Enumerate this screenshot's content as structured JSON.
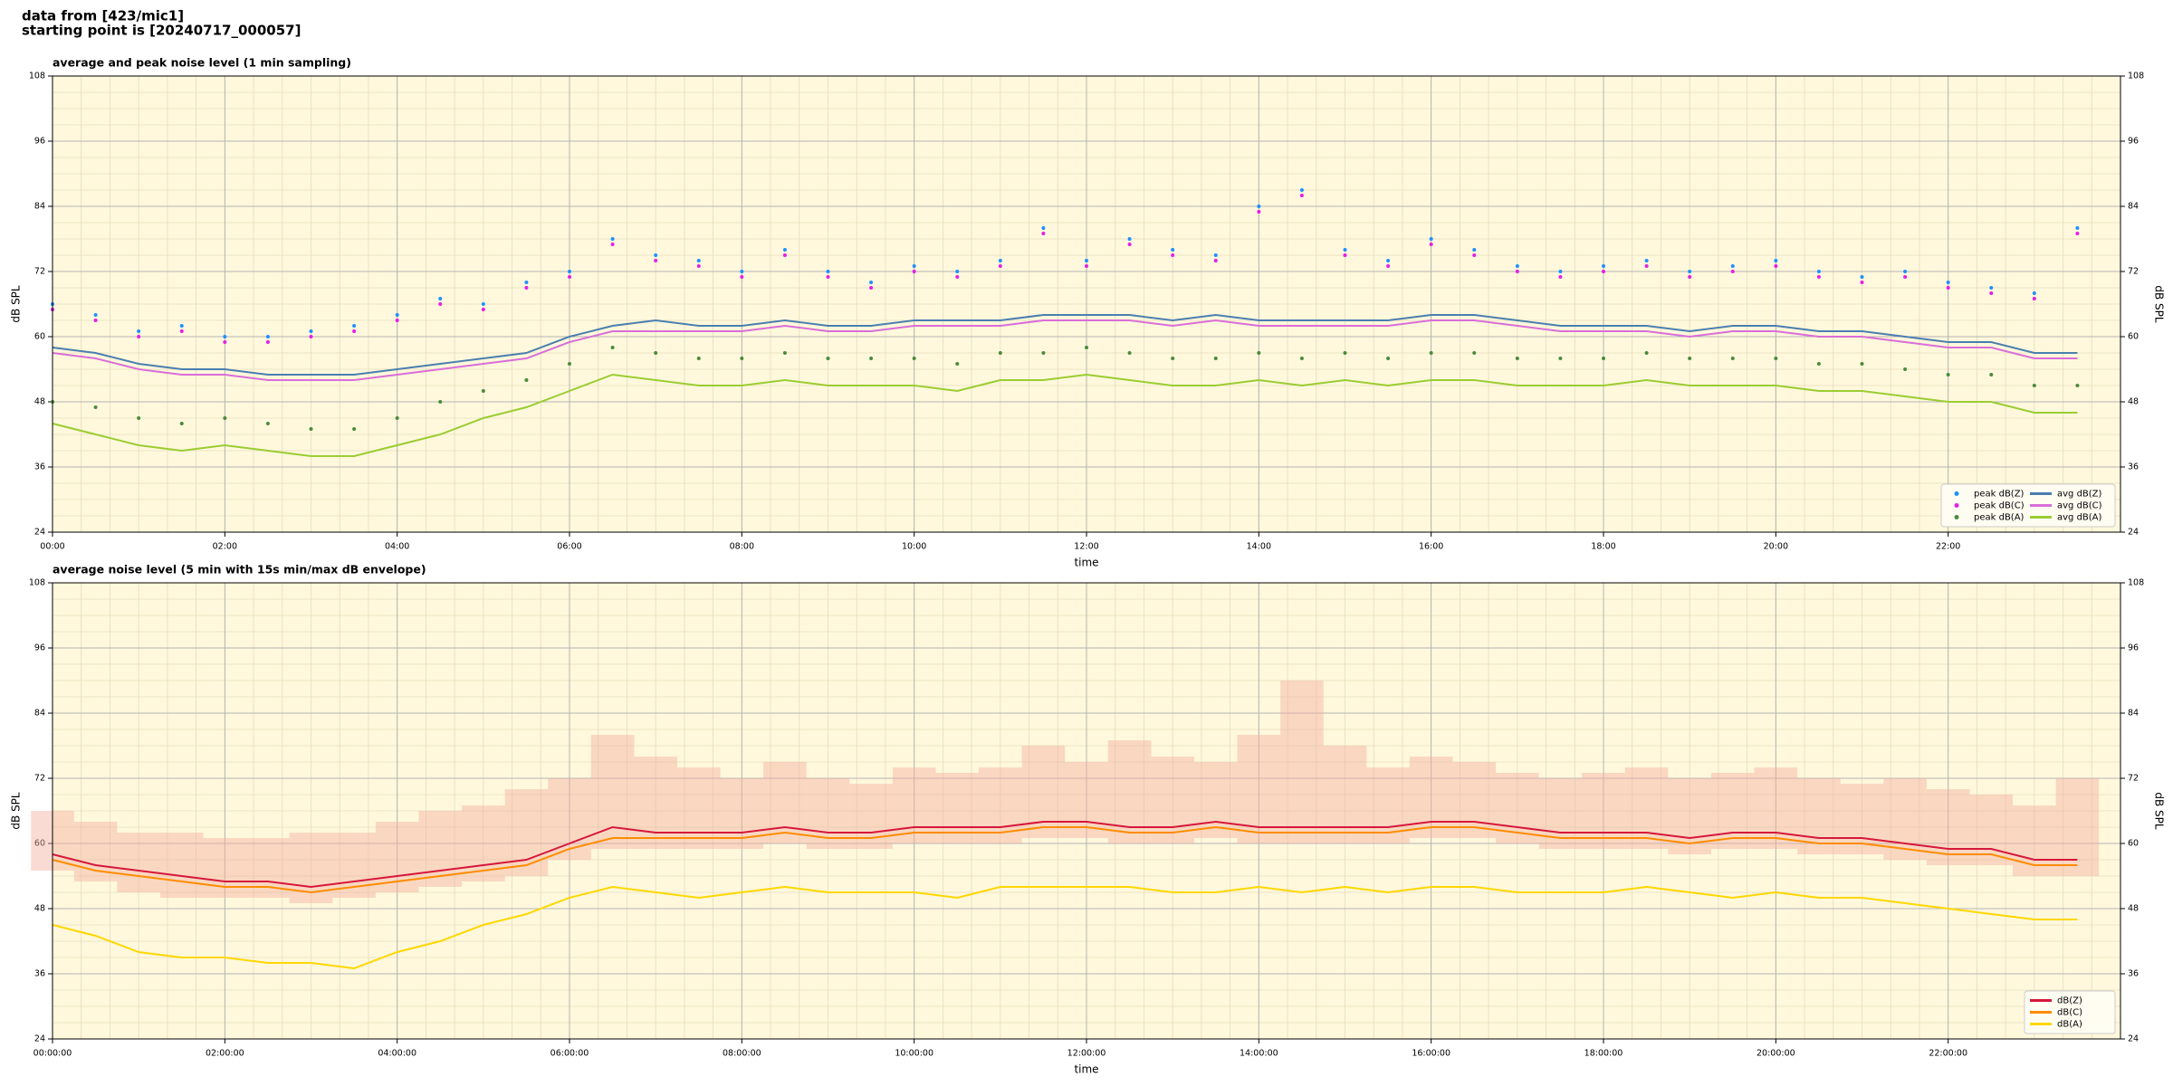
{
  "header": {
    "lines": [
      "data from [423/mic1]",
      "starting point is [20240717_000057]"
    ]
  },
  "chart_data": [
    {
      "type": "line",
      "title": "average and peak noise level (1 min sampling)",
      "xlabel": "time",
      "ylabel": "dB SPL",
      "xlim": [
        "00:00",
        "24:00"
      ],
      "ylim": [
        24,
        108
      ],
      "xticks": [
        "00:00",
        "02:00",
        "04:00",
        "06:00",
        "08:00",
        "10:00",
        "12:00",
        "14:00",
        "16:00",
        "18:00",
        "20:00",
        "22:00"
      ],
      "yticks": [
        24,
        36,
        48,
        60,
        72,
        84,
        96,
        108
      ],
      "grid": true,
      "minor_grid": true,
      "background": "#fff8dc",
      "legend": "lower right",
      "legend_columns": 2,
      "x": [
        "00:00",
        "00:30",
        "01:00",
        "01:30",
        "02:00",
        "02:30",
        "03:00",
        "03:30",
        "04:00",
        "04:30",
        "05:00",
        "05:30",
        "06:00",
        "06:30",
        "07:00",
        "07:30",
        "08:00",
        "08:30",
        "09:00",
        "09:30",
        "10:00",
        "10:30",
        "11:00",
        "11:30",
        "12:00",
        "12:30",
        "13:00",
        "13:30",
        "14:00",
        "14:30",
        "15:00",
        "15:30",
        "16:00",
        "16:30",
        "17:00",
        "17:30",
        "18:00",
        "18:30",
        "19:00",
        "19:30",
        "20:00",
        "20:30",
        "21:00",
        "21:30",
        "22:00",
        "22:30",
        "23:00",
        "23:30"
      ],
      "series": [
        {
          "name": "peak dB(Z)",
          "type": "scatter",
          "color": "#1e90ff",
          "values": [
            66,
            64,
            61,
            62,
            60,
            60,
            61,
            62,
            64,
            67,
            66,
            70,
            72,
            78,
            75,
            74,
            72,
            76,
            72,
            70,
            73,
            72,
            74,
            80,
            74,
            78,
            76,
            75,
            84,
            87,
            76,
            74,
            78,
            76,
            73,
            72,
            73,
            74,
            72,
            73,
            74,
            72,
            71,
            72,
            70,
            69,
            68,
            80
          ]
        },
        {
          "name": "peak dB(C)",
          "type": "scatter",
          "color": "#e61ee6",
          "values": [
            65,
            63,
            60,
            61,
            59,
            59,
            60,
            61,
            63,
            66,
            65,
            69,
            71,
            77,
            74,
            73,
            71,
            75,
            71,
            69,
            72,
            71,
            73,
            79,
            73,
            77,
            75,
            74,
            83,
            86,
            75,
            73,
            77,
            75,
            72,
            71,
            72,
            73,
            71,
            72,
            73,
            71,
            70,
            71,
            69,
            68,
            67,
            79
          ]
        },
        {
          "name": "peak dB(A)",
          "type": "scatter",
          "color": "#4b8b3b",
          "values": [
            48,
            47,
            45,
            44,
            45,
            44,
            43,
            43,
            45,
            48,
            50,
            52,
            55,
            58,
            57,
            56,
            56,
            57,
            56,
            56,
            56,
            55,
            57,
            57,
            58,
            57,
            56,
            56,
            57,
            56,
            57,
            56,
            57,
            57,
            56,
            56,
            56,
            57,
            56,
            56,
            56,
            55,
            55,
            54,
            53,
            53,
            51,
            51
          ]
        },
        {
          "name": "avg dB(Z)",
          "type": "line",
          "color": "#4a7fb0",
          "values": [
            58,
            57,
            55,
            54,
            54,
            53,
            53,
            53,
            54,
            55,
            56,
            57,
            60,
            62,
            63,
            62,
            62,
            63,
            62,
            62,
            63,
            63,
            63,
            64,
            64,
            64,
            63,
            64,
            63,
            63,
            63,
            63,
            64,
            64,
            63,
            62,
            62,
            62,
            61,
            62,
            62,
            61,
            61,
            60,
            59,
            59,
            57,
            57
          ]
        },
        {
          "name": "avg dB(C)",
          "type": "line",
          "color": "#d96ed9",
          "values": [
            57,
            56,
            54,
            53,
            53,
            52,
            52,
            52,
            53,
            54,
            55,
            56,
            59,
            61,
            61,
            61,
            61,
            62,
            61,
            61,
            62,
            62,
            62,
            63,
            63,
            63,
            62,
            63,
            62,
            62,
            62,
            62,
            63,
            63,
            62,
            61,
            61,
            61,
            60,
            61,
            61,
            60,
            60,
            59,
            58,
            58,
            56,
            56
          ]
        },
        {
          "name": "avg dB(A)",
          "type": "line",
          "color": "#9acd32",
          "values": [
            44,
            42,
            40,
            39,
            40,
            39,
            38,
            38,
            40,
            42,
            45,
            47,
            50,
            53,
            52,
            51,
            51,
            52,
            51,
            51,
            51,
            50,
            52,
            52,
            53,
            52,
            51,
            51,
            52,
            51,
            52,
            51,
            52,
            52,
            51,
            51,
            51,
            52,
            51,
            51,
            51,
            50,
            50,
            49,
            48,
            48,
            46,
            46
          ]
        }
      ]
    },
    {
      "type": "line",
      "title": "average noise level (5 min with 15s min/max dB envelope)",
      "xlabel": "time",
      "ylabel": "dB SPL",
      "xlim": [
        "00:00:00",
        "24:00:00"
      ],
      "ylim": [
        24,
        108
      ],
      "xticks": [
        "00:00:00",
        "02:00:00",
        "04:00:00",
        "06:00:00",
        "08:00:00",
        "10:00:00",
        "12:00:00",
        "14:00:00",
        "16:00:00",
        "18:00:00",
        "20:00:00",
        "22:00:00"
      ],
      "yticks": [
        24,
        36,
        48,
        60,
        72,
        84,
        96,
        108
      ],
      "grid": true,
      "minor_grid": true,
      "background": "#fff8dc",
      "legend": "lower right",
      "legend_columns": 1,
      "x": [
        "00:00",
        "00:30",
        "01:00",
        "01:30",
        "02:00",
        "02:30",
        "03:00",
        "03:30",
        "04:00",
        "04:30",
        "05:00",
        "05:30",
        "06:00",
        "06:30",
        "07:00",
        "07:30",
        "08:00",
        "08:30",
        "09:00",
        "09:30",
        "10:00",
        "10:30",
        "11:00",
        "11:30",
        "12:00",
        "12:30",
        "13:00",
        "13:30",
        "14:00",
        "14:30",
        "15:00",
        "15:30",
        "16:00",
        "16:30",
        "17:00",
        "17:30",
        "18:00",
        "18:30",
        "19:00",
        "19:30",
        "20:00",
        "20:30",
        "21:00",
        "21:30",
        "22:00",
        "22:30",
        "23:00",
        "23:30"
      ],
      "envelope": {
        "color": "#f4b0a0",
        "upper": [
          66,
          64,
          62,
          62,
          61,
          61,
          62,
          62,
          64,
          66,
          67,
          70,
          72,
          80,
          76,
          74,
          72,
          75,
          72,
          71,
          74,
          73,
          74,
          78,
          75,
          79,
          76,
          75,
          80,
          90,
          78,
          74,
          76,
          75,
          73,
          72,
          73,
          74,
          72,
          73,
          74,
          72,
          71,
          72,
          70,
          69,
          67,
          72
        ],
        "lower": [
          55,
          53,
          51,
          50,
          50,
          50,
          49,
          50,
          51,
          52,
          53,
          54,
          57,
          59,
          59,
          59,
          59,
          60,
          59,
          59,
          60,
          60,
          60,
          61,
          61,
          60,
          60,
          61,
          60,
          60,
          60,
          60,
          61,
          61,
          60,
          59,
          59,
          59,
          58,
          59,
          59,
          58,
          58,
          57,
          56,
          56,
          54,
          54
        ]
      },
      "series": [
        {
          "name": "dB(Z)",
          "type": "line",
          "color": "#d6173c",
          "values": [
            58,
            56,
            55,
            54,
            53,
            53,
            52,
            53,
            54,
            55,
            56,
            57,
            60,
            63,
            62,
            62,
            62,
            63,
            62,
            62,
            63,
            63,
            63,
            64,
            64,
            63,
            63,
            64,
            63,
            63,
            63,
            63,
            64,
            64,
            63,
            62,
            62,
            62,
            61,
            62,
            62,
            61,
            61,
            60,
            59,
            59,
            57,
            57
          ]
        },
        {
          "name": "dB(C)",
          "type": "line",
          "color": "#ff8c00",
          "values": [
            57,
            55,
            54,
            53,
            52,
            52,
            51,
            52,
            53,
            54,
            55,
            56,
            59,
            61,
            61,
            61,
            61,
            62,
            61,
            61,
            62,
            62,
            62,
            63,
            63,
            62,
            62,
            63,
            62,
            62,
            62,
            62,
            63,
            63,
            62,
            61,
            61,
            61,
            60,
            61,
            61,
            60,
            60,
            59,
            58,
            58,
            56,
            56
          ]
        },
        {
          "name": "dB(A)",
          "type": "line",
          "color": "#ffd700",
          "values": [
            45,
            43,
            40,
            39,
            39,
            38,
            38,
            37,
            40,
            42,
            45,
            47,
            50,
            52,
            51,
            50,
            51,
            52,
            51,
            51,
            51,
            50,
            52,
            52,
            52,
            52,
            51,
            51,
            52,
            51,
            52,
            51,
            52,
            52,
            51,
            51,
            51,
            52,
            51,
            50,
            51,
            50,
            50,
            49,
            48,
            47,
            46,
            46
          ]
        }
      ]
    }
  ]
}
